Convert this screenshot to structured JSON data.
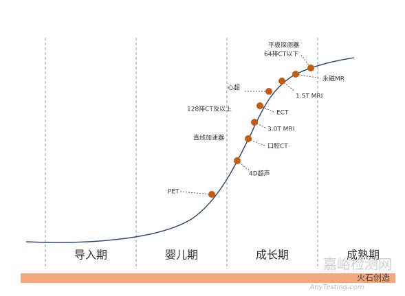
{
  "stages": [
    "导入期",
    "婴儿期",
    "成长期",
    "成熟期"
  ],
  "labels": [
    "PET",
    "4D超声",
    "直线加速器",
    "口腔CT",
    "128排CT及以上",
    "3.0T MRI",
    "ECT",
    "心超",
    "1.5T MRI",
    "永磁MR",
    "平板探测器",
    "64排CT以下"
  ],
  "watermark": {
    "site": "嘉峪检测网",
    "url": "AnyTesting.com",
    "brand": "火石创造"
  }
}
